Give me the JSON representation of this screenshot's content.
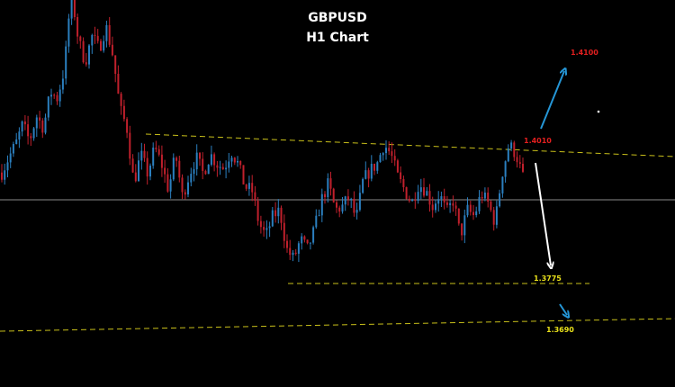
{
  "chart_data": {
    "type": "candlestick",
    "title": "GBPUSD",
    "subtitle": "H1 Chart",
    "colors": {
      "background": "#000000",
      "bull": "#2b7fbf",
      "bear": "#c0202c",
      "support_resistance": "#c9c01a",
      "baseline": "#8a8a8a",
      "arrow_up": "#2596d6",
      "arrow_down": "#ffffff",
      "arrow_small": "#2596d6"
    },
    "y_range": [
      1.3635,
      1.4225
    ],
    "baseline_level": 1.3945,
    "close_path": [
      1.3962,
      1.3985,
      1.4005,
      1.4035,
      1.401,
      1.4048,
      1.403,
      1.4085,
      1.4075,
      1.412,
      1.424,
      1.4165,
      1.413,
      1.417,
      1.415,
      1.4185,
      1.414,
      1.406,
      1.403,
      1.3945,
      1.399,
      1.396,
      1.4,
      1.3975,
      1.3935,
      1.399,
      1.3925,
      1.396,
      1.3985,
      1.396,
      1.399,
      1.3975,
      1.3968,
      1.3995,
      1.3975,
      1.394,
      1.3935,
      1.3885,
      1.3865,
      1.3895,
      1.3905,
      1.3845,
      1.383,
      1.386,
      1.3845,
      1.3875,
      1.392,
      1.3945,
      1.3905,
      1.391,
      1.3925,
      1.389,
      1.395,
      1.3965,
      1.3975,
      1.4005,
      1.399,
      1.3955,
      1.3935,
      1.3915,
      1.3945,
      1.3935,
      1.391,
      1.393,
      1.39,
      1.392,
      1.3865,
      1.3905,
      1.3895,
      1.393,
      1.3915,
      1.3885,
      1.396,
      1.4005,
      1.399,
      1.3955
    ],
    "levels": [
      {
        "label": "1.4100",
        "value": 1.41,
        "color": "#e21f1f"
      },
      {
        "label": "1.4010",
        "value": 1.401,
        "color": "#e21f1f"
      },
      {
        "label": "1.3775",
        "value": 1.3775,
        "color": "#e8e01a"
      },
      {
        "label": "1.3690",
        "value": 1.369,
        "color": "#e8e01a"
      }
    ]
  }
}
